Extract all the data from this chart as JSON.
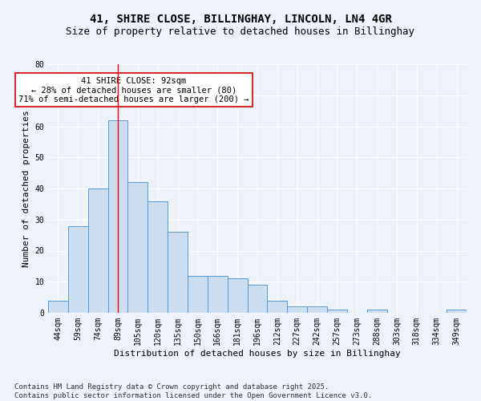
{
  "title": "41, SHIRE CLOSE, BILLINGHAY, LINCOLN, LN4 4GR",
  "subtitle": "Size of property relative to detached houses in Billinghay",
  "xlabel": "Distribution of detached houses by size in Billinghay",
  "ylabel": "Number of detached properties",
  "categories": [
    "44sqm",
    "59sqm",
    "74sqm",
    "89sqm",
    "105sqm",
    "120sqm",
    "135sqm",
    "150sqm",
    "166sqm",
    "181sqm",
    "196sqm",
    "212sqm",
    "227sqm",
    "242sqm",
    "257sqm",
    "273sqm",
    "288sqm",
    "303sqm",
    "318sqm",
    "334sqm",
    "349sqm"
  ],
  "values": [
    4,
    28,
    40,
    62,
    42,
    36,
    26,
    12,
    12,
    11,
    9,
    4,
    2,
    2,
    1,
    0,
    1,
    0,
    0,
    0,
    1
  ],
  "bar_color": "#ccddf0",
  "bar_edge_color": "#5b9bd5",
  "red_line_x": 3.0,
  "annotation_text": "41 SHIRE CLOSE: 92sqm\n← 28% of detached houses are smaller (80)\n71% of semi-detached houses are larger (200) →",
  "annotation_box_color": "#ffffff",
  "annotation_box_edge_color": "#cc0000",
  "ylim": [
    0,
    80
  ],
  "yticks": [
    0,
    10,
    20,
    30,
    40,
    50,
    60,
    70,
    80
  ],
  "background_color": "#eef2fa",
  "grid_color": "#d8e4f0",
  "footer": "Contains HM Land Registry data © Crown copyright and database right 2025.\nContains public sector information licensed under the Open Government Licence v3.0.",
  "title_fontsize": 10,
  "subtitle_fontsize": 9,
  "xlabel_fontsize": 8,
  "ylabel_fontsize": 8,
  "tick_fontsize": 7,
  "footer_fontsize": 6.5,
  "annot_fontsize": 7.5
}
